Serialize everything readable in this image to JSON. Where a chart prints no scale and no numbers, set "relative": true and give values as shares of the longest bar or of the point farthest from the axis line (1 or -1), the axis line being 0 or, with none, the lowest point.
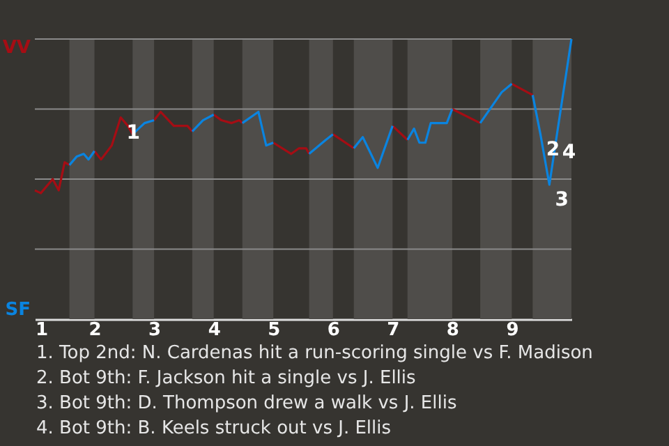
{
  "chart_data": {
    "type": "line",
    "relative": true,
    "xlim": [
      1,
      10
    ],
    "xticks": [
      1,
      2,
      3,
      4,
      5,
      6,
      7,
      8,
      9
    ],
    "marker": "none",
    "line_style": "solid",
    "series": [
      {
        "color": "#a50d14",
        "x": [
          1.0,
          1.1,
          1.3,
          1.4,
          1.5,
          1.58,
          1.8,
          2.0,
          2.11,
          2.29,
          2.44,
          2.56,
          2.64,
          2.82,
          3.0,
          3.11,
          3.33,
          3.56,
          3.64,
          3.82,
          4.0,
          4.13,
          4.3,
          4.43,
          4.48,
          4.75,
          5.0,
          5.3,
          5.43,
          5.55,
          5.6,
          5.8,
          6.0,
          6.35,
          6.68,
          7.0,
          7.25,
          7.64,
          8.0,
          8.47,
          8.73,
          9.0,
          9.35
        ],
        "values": [
          0.46,
          0.45,
          0.5,
          0.46,
          0.56,
          0.55,
          null,
          0.6,
          0.57,
          0.62,
          0.72,
          0.69,
          0.66,
          null,
          0.71,
          0.74,
          0.69,
          0.69,
          0.67,
          null,
          0.73,
          0.71,
          0.7,
          0.71,
          0.7,
          null,
          0.63,
          0.59,
          0.61,
          0.61,
          0.59,
          null,
          0.66,
          0.61,
          null,
          0.69,
          0.64,
          null,
          0.75,
          0.7,
          null,
          0.84,
          0.8
        ]
      },
      {
        "color": "#0a84e0",
        "x": [
          1.58,
          1.7,
          1.82,
          1.9,
          2.0,
          2.33,
          2.64,
          2.84,
          3.0,
          3.33,
          3.64,
          3.82,
          4.0,
          4.25,
          4.48,
          4.75,
          4.88,
          5.0,
          5.3,
          5.6,
          5.88,
          6.0,
          6.18,
          6.35,
          6.5,
          6.75,
          7.0,
          7.13,
          7.25,
          7.36,
          7.45,
          7.55,
          7.64,
          7.91,
          8.0,
          8.23,
          8.47,
          8.83,
          9.0,
          9.18,
          9.35,
          9.48,
          9.63,
          9.75,
          10.0
        ],
        "values": [
          0.55,
          0.58,
          0.59,
          0.57,
          0.6,
          null,
          0.66,
          0.7,
          0.71,
          null,
          0.67,
          0.71,
          0.73,
          null,
          0.7,
          0.74,
          0.62,
          0.63,
          null,
          0.59,
          0.64,
          0.66,
          null,
          0.61,
          0.65,
          0.54,
          0.69,
          null,
          0.64,
          0.68,
          0.63,
          0.63,
          0.7,
          0.7,
          0.75,
          null,
          0.7,
          0.81,
          0.84,
          null,
          0.8,
          0.66,
          0.48,
          0.65,
          1.0
        ]
      }
    ],
    "ref_lines": [
      {
        "axis": "y",
        "value": 0.25,
        "color": "#8a8a8a"
      },
      {
        "axis": "y",
        "value": 0.5,
        "color": "#8a8a8a"
      },
      {
        "axis": "y",
        "value": 0.75,
        "color": "#8a8a8a"
      },
      {
        "axis": "y",
        "value": 1,
        "color": "#8a8a8a"
      }
    ],
    "bands": [
      {
        "axis": "x",
        "from": 1.58,
        "to": 2,
        "color": "#4f4d4a"
      },
      {
        "axis": "x",
        "from": 2.64,
        "to": 3,
        "color": "#4f4d4a"
      },
      {
        "axis": "x",
        "from": 3.64,
        "to": 4,
        "color": "#4f4d4a"
      },
      {
        "axis": "x",
        "from": 4.48,
        "to": 5,
        "color": "#4f4d4a"
      },
      {
        "axis": "x",
        "from": 5.6,
        "to": 6,
        "color": "#4f4d4a"
      },
      {
        "axis": "x",
        "from": 6.35,
        "to": 7,
        "color": "#4f4d4a"
      },
      {
        "axis": "x",
        "from": 7.25,
        "to": 8,
        "color": "#4f4d4a"
      },
      {
        "axis": "x",
        "from": 8.47,
        "to": 9,
        "color": "#4f4d4a"
      },
      {
        "axis": "x",
        "from": 9.35,
        "to": 10,
        "color": "#4f4d4a"
      }
    ],
    "annotations": [
      {
        "text": "1",
        "x": 2.44,
        "y": 0.72
      },
      {
        "text": "2",
        "x": 9.48,
        "y": 0.66
      },
      {
        "text": "3",
        "x": 9.63,
        "y": 0.48
      },
      {
        "text": "4",
        "x": 9.75,
        "y": 0.65
      },
      "VV",
      "SF",
      "1. Top 2nd: N. Cardenas hit a run-scoring single vs F. Madison",
      "2. Bot 9th: F. Jackson hit a single vs J. Ellis",
      "3. Bot 9th: D. Thompson drew a walk vs J. Ellis",
      "4. Bot 9th: B. Keels struck out vs J. Ellis"
    ]
  }
}
